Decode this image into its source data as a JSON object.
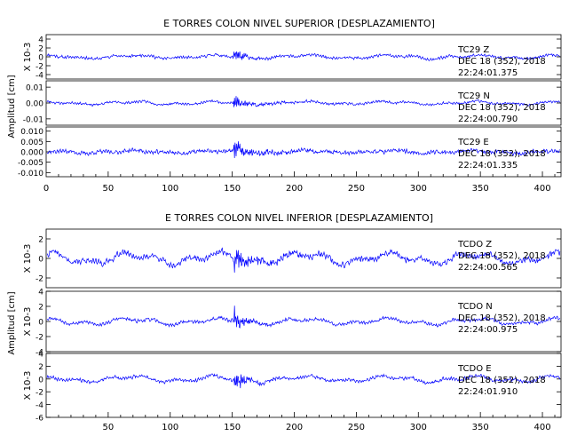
{
  "chart_data": [
    {
      "type": "line",
      "title": "E TORRES COLON NIVEL SUPERIOR [DESPLAZAMIENTO]",
      "ylabel": "Amplitud [cm]",
      "xlim": [
        0,
        415
      ],
      "xticks": [
        0,
        50,
        100,
        150,
        200,
        250,
        300,
        350,
        400
      ],
      "grid": false,
      "event_time": 151,
      "traces": [
        {
          "name": "TC29 Z",
          "station": "TC29",
          "component": "Z",
          "date": "DEC 18 (352), 2018",
          "time": "22:24:01.375",
          "scale_label": "X 10-3",
          "ylim": [
            -5,
            5
          ],
          "yticks": [
            -4,
            -2,
            0,
            2,
            4
          ],
          "ytick_labels": [
            "-4",
            "-2",
            "0",
            "2",
            "4"
          ],
          "pre_amp": 0.5,
          "peak_amp": 3.6,
          "coda_amp": 0.9,
          "long_amp": 0.5,
          "decay": 22,
          "seed": 11
        },
        {
          "name": "TC29 N",
          "station": "TC29",
          "component": "N",
          "date": "DEC 18 (352), 2018",
          "time": "22:24:00.790",
          "scale_label": "",
          "ylim": [
            -0.014,
            0.014
          ],
          "yticks": [
            -0.01,
            0.0,
            0.01
          ],
          "ytick_labels": [
            "-0.01",
            "0.00",
            "0.01"
          ],
          "pre_amp": 0.0012,
          "peak_amp": 0.011,
          "coda_amp": 0.004,
          "long_amp": 0.0012,
          "decay": 28,
          "seed": 23
        },
        {
          "name": "TC29 E",
          "station": "TC29",
          "component": "E",
          "date": "DEC 18 (352), 2018",
          "time": "22:24:01.335",
          "scale_label": "",
          "ylim": [
            -0.012,
            0.012
          ],
          "yticks": [
            -0.01,
            -0.005,
            0.0,
            0.005,
            0.01
          ],
          "ytick_labels": [
            "-0.010",
            "-0.005",
            "0.000",
            "0.005",
            "0.010"
          ],
          "pre_amp": 0.0015,
          "peak_amp": 0.011,
          "coda_amp": 0.004,
          "long_amp": 0.0008,
          "decay": 30,
          "seed": 37
        }
      ]
    },
    {
      "type": "line",
      "title": "E TORRES COLON NIVEL INFERIOR [DESPLAZAMIENTO]",
      "ylabel": "Amplitud [cm]",
      "xlim": [
        0,
        415
      ],
      "xticks": [
        50,
        100,
        150,
        200,
        250,
        300,
        350,
        400
      ],
      "grid": false,
      "event_time": 151,
      "traces": [
        {
          "name": "TCDO Z",
          "station": "TCDO",
          "component": "Z",
          "date": "DEC 18 (352), 2018",
          "time": "22:24:00.565",
          "scale_label": "X 10-3",
          "ylim": [
            -3,
            3
          ],
          "yticks": [
            -2,
            0,
            2
          ],
          "ytick_labels": [
            "-2",
            "0",
            "2"
          ],
          "pre_amp": 0.45,
          "peak_amp": 2.6,
          "coda_amp": 1.0,
          "long_amp": 0.7,
          "decay": 35,
          "seed": 41
        },
        {
          "name": "TCDO N",
          "station": "TCDO",
          "component": "N",
          "date": "DEC 18 (352), 2018",
          "time": "22:24:00.975",
          "scale_label": "X 10-3",
          "ylim": [
            -4,
            4
          ],
          "yticks": [
            -4,
            -2,
            0,
            2,
            4
          ],
          "ytick_labels": [
            "-4",
            "-2",
            "0",
            "2",
            "4"
          ],
          "pre_amp": 0.35,
          "peak_amp": 3.5,
          "coda_amp": 0.9,
          "long_amp": 0.5,
          "decay": 25,
          "seed": 53
        },
        {
          "name": "TCDO E",
          "station": "TCDO",
          "component": "E",
          "date": "DEC 18 (352), 2018",
          "time": "22:24:01.910",
          "scale_label": "X 10-3",
          "ylim": [
            -6,
            4
          ],
          "yticks": [
            -6,
            -4,
            -2,
            0,
            2,
            4
          ],
          "ytick_labels": [
            "-6",
            "-4",
            "-2",
            "0",
            "2",
            "4"
          ],
          "pre_amp": 0.4,
          "peak_amp": 4.8,
          "coda_amp": 0.9,
          "long_amp": 0.6,
          "decay": 22,
          "seed": 67
        }
      ]
    }
  ],
  "colors": {
    "trace": "#0000ff",
    "axes": "#000000",
    "background": "#ffffff"
  }
}
